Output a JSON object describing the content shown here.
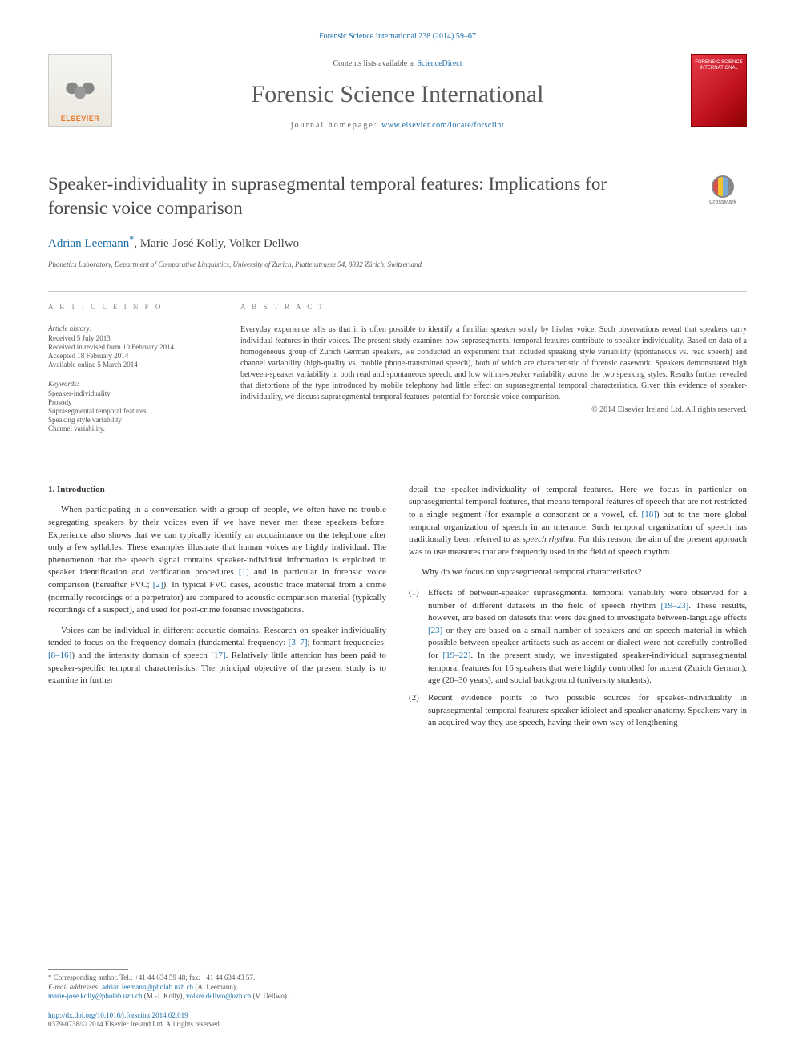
{
  "top_citation": "Forensic Science International 238 (2014) 59–67",
  "header": {
    "contents_prefix": "Contents lists available at ",
    "contents_link": "ScienceDirect",
    "journal_name": "Forensic Science International",
    "homepage_prefix": "journal homepage: ",
    "homepage_url": "www.elsevier.com/locate/forsciint",
    "publisher": "ELSEVIER",
    "cover_text": "FORENSIC SCIENCE INTERNATIONAL"
  },
  "crossmark_label": "CrossMark",
  "title": "Speaker-individuality in suprasegmental temporal features: Implications for forensic voice comparison",
  "authors": {
    "a1": "Adrian Leemann",
    "sep1": ", ",
    "a2": "Marie-José Kolly",
    "sep2": ", ",
    "a3": "Volker Dellwo"
  },
  "affiliation": "Phonetics Laboratory, Department of Comparative Linguistics, University of Zurich, Plattenstrasse 54, 8032 Zürich, Switzerland",
  "info": {
    "heading": "A R T I C L E   I N F O",
    "history_label": "Article history:",
    "h1": "Received 5 July 2013",
    "h2": "Received in revised form 10 February 2014",
    "h3": "Accepted 18 February 2014",
    "h4": "Available online 5 March 2014",
    "keywords_label": "Keywords:",
    "k1": "Speaker-individuality",
    "k2": "Prosody",
    "k3": "Suprasegmental temporal features",
    "k4": "Speaking style variability",
    "k5": "Channel variability."
  },
  "abstract": {
    "heading": "A B S T R A C T",
    "text": "Everyday experience tells us that it is often possible to identify a familiar speaker solely by his/her voice. Such observations reveal that speakers carry individual features in their voices. The present study examines how suprasegmental temporal features contribute to speaker-individuality. Based on data of a homogeneous group of Zurich German speakers, we conducted an experiment that included speaking style variability (spontaneous vs. read speech) and channel variability (high-quality vs. mobile phone-transmitted speech), both of which are characteristic of forensic casework. Speakers demonstrated high between-speaker variability in both read and spontaneous speech, and low within-speaker variability across the two speaking styles. Results further revealed that distortions of the type introduced by mobile telephony had little effect on suprasegmental temporal characteristics. Given this evidence of speaker-individuality, we discuss suprasegmental temporal features' potential for forensic voice comparison.",
    "copyright": "© 2014 Elsevier Ireland Ltd. All rights reserved."
  },
  "section1_heading": "1. Introduction",
  "col1": {
    "p1a": "When participating in a conversation with a group of people, we often have no trouble segregating speakers by their voices even if we have never met these speakers before. Experience also shows that we can typically identify an acquaintance on the telephone after only a few syllables. These examples illustrate that human voices are highly individual. The phenomenon that the speech signal contains speaker-individual information is exploited in speaker identification and verification procedures ",
    "r1": "[1]",
    "p1b": " and in particular in forensic voice comparison (hereafter FVC; ",
    "r2": "[2]",
    "p1c": "). In typical FVC cases, acoustic trace material from a crime (normally recordings of a perpetrator) are compared to acoustic comparison material (typically recordings of a suspect), and used for post-crime forensic investigations.",
    "p2a": "Voices can be individual in different acoustic domains. Research on speaker-individuality tended to focus on the frequency domain (fundamental frequency: ",
    "r3": "[3–7]",
    "p2b": "; formant frequencies: ",
    "r4": "[8–16]",
    "p2c": ") and the intensity domain of speech ",
    "r5": "[17]",
    "p2d": ". Relatively little attention has been paid to speaker-specific temporal characteristics. The principal objective of the present study is to examine in further"
  },
  "col2": {
    "p1a": "detail the speaker-individuality of temporal features. Here we focus in particular on suprasegmental temporal features, that means temporal features of speech that are not restricted to a single segment (for example a consonant or a vowel, cf. ",
    "r1": "[18]",
    "p1b": ") but to the more global temporal organization of speech in an utterance. Such temporal organization of speech has traditionally been referred to as ",
    "italic1": "speech rhythm",
    "p1c": ". For this reason, the aim of the present approach was to use measures that are frequently used in the field of speech rhythm.",
    "p2": "Why do we focus on suprasegmental temporal characteristics?",
    "li1_num": "(1)",
    "li1a": "Effects of between-speaker suprasegmental temporal variability were observed for a number of different datasets in the field of speech rhythm ",
    "li1_r1": "[19–23]",
    "li1b": ". These results, however, are based on datasets that were designed to investigate between-language effects ",
    "li1_r2": "[23]",
    "li1c": " or they are based on a small number of speakers and on speech material in which possible between-speaker artifacts such as accent or dialect were not carefully controlled for ",
    "li1_r3": "[19–22]",
    "li1d": ". In the present study, we investigated speaker-individual suprasegmental temporal features for 16 speakers that were highly controlled for accent (Zurich German), age (20–30 years), and social background (university students).",
    "li2_num": "(2)",
    "li2": "Recent evidence points to two possible sources for speaker-individuality in suprasegmental temporal features: speaker idiolect and speaker anatomy. Speakers vary in an acquired way they use speech, having their own way of lengthening"
  },
  "footnote": {
    "corr": "* Corresponding author. Tel.: +41 44 634 59 48; fax: +41 44 634 43 57.",
    "email_label": "E-mail addresses: ",
    "e1": "adrian.leemann@pholab.uzh.ch",
    "n1": " (A. Leemann), ",
    "e2": "marie-jose.kolly@pholab.uzh.ch",
    "n2": " (M.-J. Kolly), ",
    "e3": "volker.dellwo@uzh.ch",
    "n3": " (V. Dellwo)."
  },
  "doi": "http://dx.doi.org/10.1016/j.forsciint.2014.02.019",
  "issn": "0379-0738/© 2014 Elsevier Ireland Ltd. All rights reserved.",
  "colors": {
    "link": "#1a6ea8",
    "text": "#333333",
    "heading_gray": "#888888",
    "elsevier_orange": "#e87722",
    "cover_red": "#c1121f"
  }
}
